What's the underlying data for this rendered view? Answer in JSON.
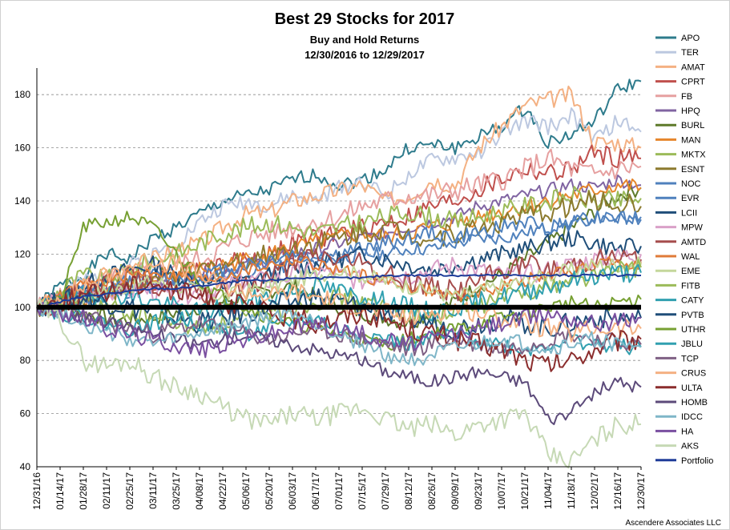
{
  "chart_data": {
    "type": "line",
    "title": "Best 29 Stocks for 2017",
    "subtitle_1": "Buy and Hold Returns",
    "subtitle_2": "12/30/2016 to 12/29/2017",
    "xlabel": "",
    "ylabel": "",
    "ylim": [
      40,
      190
    ],
    "yticks": [
      40,
      60,
      80,
      100,
      120,
      140,
      160,
      180
    ],
    "grid": true,
    "legend_position": "right",
    "baseline_value": 100,
    "credit": "Ascendere Associates LLC",
    "x": [
      "12/31/16",
      "01/14/17",
      "01/28/17",
      "02/11/17",
      "02/25/17",
      "03/11/17",
      "03/25/17",
      "04/08/17",
      "04/22/17",
      "05/06/17",
      "05/20/17",
      "06/03/17",
      "06/17/17",
      "07/01/17",
      "07/15/17",
      "07/29/17",
      "08/12/17",
      "08/26/17",
      "09/09/17",
      "09/23/17",
      "10/07/17",
      "10/21/17",
      "11/04/17",
      "11/18/17",
      "12/02/17",
      "12/16/17",
      "12/30/17"
    ],
    "series": [
      {
        "name": "APO",
        "color": "#2e7b8c",
        "values": [
          100,
          108,
          112,
          120,
          118,
          126,
          130,
          135,
          140,
          142,
          144,
          148,
          150,
          146,
          148,
          152,
          160,
          161,
          160,
          164,
          168,
          175,
          162,
          165,
          170,
          182,
          185
        ]
      },
      {
        "name": "TER",
        "color": "#bcc8e0",
        "values": [
          100,
          104,
          110,
          112,
          116,
          120,
          124,
          132,
          138,
          140,
          138,
          142,
          140,
          145,
          148,
          142,
          150,
          155,
          156,
          158,
          165,
          170,
          168,
          172,
          163,
          170,
          166
        ]
      },
      {
        "name": "AMAT",
        "color": "#f4b183",
        "values": [
          100,
          103,
          108,
          112,
          114,
          118,
          122,
          124,
          130,
          135,
          136,
          140,
          142,
          144,
          146,
          140,
          142,
          148,
          146,
          160,
          168,
          176,
          178,
          180,
          162,
          162,
          160
        ]
      },
      {
        "name": "CPRT",
        "color": "#c0504d",
        "values": [
          100,
          102,
          104,
          106,
          108,
          110,
          112,
          114,
          116,
          118,
          120,
          124,
          126,
          128,
          130,
          132,
          134,
          138,
          140,
          144,
          148,
          152,
          150,
          152,
          158,
          156,
          156
        ]
      },
      {
        "name": "FB",
        "color": "#e6a0a0",
        "values": [
          100,
          103,
          106,
          110,
          112,
          114,
          116,
          118,
          122,
          126,
          128,
          130,
          132,
          134,
          138,
          140,
          142,
          142,
          144,
          146,
          148,
          152,
          156,
          152,
          150,
          152,
          153
        ]
      },
      {
        "name": "HPQ",
        "color": "#8064a2",
        "values": [
          100,
          102,
          104,
          106,
          108,
          110,
          108,
          112,
          114,
          116,
          118,
          120,
          122,
          124,
          126,
          128,
          130,
          132,
          134,
          138,
          140,
          142,
          144,
          146,
          145,
          148,
          146
        ]
      },
      {
        "name": "BURL",
        "color": "#5e7a2a",
        "values": [
          100,
          100,
          98,
          96,
          95,
          96,
          98,
          100,
          102,
          104,
          106,
          108,
          104,
          100,
          98,
          96,
          94,
          98,
          102,
          108,
          112,
          118,
          124,
          130,
          136,
          142,
          145
        ]
      },
      {
        "name": "MAN",
        "color": "#e6862c",
        "values": [
          100,
          102,
          104,
          106,
          108,
          110,
          112,
          114,
          116,
          118,
          120,
          122,
          124,
          126,
          128,
          126,
          128,
          130,
          132,
          134,
          136,
          138,
          140,
          142,
          144,
          146,
          145
        ]
      },
      {
        "name": "MKTX",
        "color": "#9bbb59",
        "values": [
          100,
          106,
          112,
          110,
          114,
          118,
          120,
          124,
          128,
          130,
          132,
          130,
          128,
          130,
          132,
          134,
          136,
          134,
          132,
          134,
          136,
          138,
          140,
          142,
          140,
          140,
          141
        ]
      },
      {
        "name": "ESNT",
        "color": "#8c7a2e",
        "values": [
          100,
          102,
          104,
          106,
          108,
          110,
          112,
          114,
          116,
          118,
          120,
          122,
          124,
          126,
          128,
          130,
          128,
          126,
          128,
          130,
          132,
          134,
          136,
          138,
          140,
          139,
          138
        ]
      },
      {
        "name": "NOC",
        "color": "#4f81bd",
        "values": [
          100,
          101,
          102,
          104,
          106,
          106,
          108,
          110,
          112,
          114,
          114,
          116,
          118,
          118,
          120,
          120,
          122,
          122,
          124,
          126,
          126,
          128,
          130,
          132,
          134,
          133,
          134
        ]
      },
      {
        "name": "EVR",
        "color": "#4f81bd",
        "values": [
          100,
          104,
          106,
          108,
          110,
          112,
          110,
          112,
          114,
          116,
          118,
          120,
          118,
          120,
          122,
          124,
          126,
          128,
          126,
          128,
          130,
          132,
          130,
          132,
          134,
          134,
          133
        ]
      },
      {
        "name": "LCII",
        "color": "#1f4e79",
        "values": [
          100,
          104,
          108,
          112,
          114,
          116,
          112,
          110,
          108,
          110,
          112,
          114,
          116,
          118,
          120,
          118,
          116,
          114,
          116,
          118,
          120,
          122,
          124,
          126,
          124,
          122,
          123
        ]
      },
      {
        "name": "MPW",
        "color": "#d9a0c8",
        "values": [
          100,
          102,
          104,
          106,
          106,
          106,
          104,
          106,
          108,
          110,
          110,
          112,
          114,
          112,
          110,
          112,
          112,
          114,
          116,
          114,
          112,
          112,
          114,
          116,
          118,
          119,
          120
        ]
      },
      {
        "name": "AMTD",
        "color": "#a64d4d",
        "values": [
          100,
          102,
          106,
          110,
          112,
          108,
          106,
          104,
          106,
          108,
          112,
          116,
          120,
          118,
          116,
          112,
          110,
          108,
          106,
          110,
          114,
          116,
          114,
          116,
          118,
          119,
          118
        ]
      },
      {
        "name": "WAL",
        "color": "#e07b39",
        "values": [
          100,
          104,
          108,
          110,
          112,
          114,
          112,
          110,
          112,
          114,
          116,
          118,
          116,
          114,
          112,
          110,
          108,
          106,
          104,
          106,
          108,
          110,
          112,
          114,
          116,
          117,
          117
        ]
      },
      {
        "name": "EME",
        "color": "#c4d79b",
        "values": [
          100,
          102,
          104,
          106,
          108,
          110,
          108,
          106,
          104,
          106,
          108,
          110,
          112,
          114,
          112,
          110,
          108,
          106,
          104,
          106,
          108,
          110,
          112,
          114,
          116,
          116,
          116
        ]
      },
      {
        "name": "FITB",
        "color": "#9bbb59",
        "values": [
          100,
          102,
          104,
          100,
          98,
          96,
          94,
          92,
          94,
          96,
          98,
          100,
          102,
          104,
          102,
          100,
          98,
          96,
          98,
          100,
          104,
          106,
          108,
          110,
          112,
          114,
          115
        ]
      },
      {
        "name": "CATY",
        "color": "#31a0b0",
        "values": [
          100,
          102,
          104,
          106,
          104,
          102,
          100,
          98,
          100,
          102,
          104,
          106,
          108,
          106,
          104,
          102,
          100,
          98,
          100,
          102,
          104,
          106,
          108,
          110,
          112,
          113,
          113
        ]
      },
      {
        "name": "PVTB",
        "color": "#1f4e79",
        "values": [
          100,
          102,
          104,
          102,
          100,
          98,
          96,
          94,
          96,
          98,
          100,
          102,
          104,
          102,
          100,
          98,
          96,
          94,
          92,
          94,
          96,
          94,
          92,
          94,
          96,
          96,
          96
        ]
      },
      {
        "name": "UTHR",
        "color": "#77a033",
        "values": [
          100,
          102,
          130,
          132,
          134,
          130,
          120,
          110,
          104,
          100,
          96,
          94,
          92,
          90,
          88,
          86,
          88,
          90,
          92,
          94,
          96,
          98,
          100,
          102,
          100,
          102,
          103
        ]
      },
      {
        "name": "JBLU",
        "color": "#31a0b0",
        "values": [
          100,
          98,
          96,
          94,
          92,
          94,
          96,
          94,
          92,
          90,
          92,
          94,
          96,
          92,
          90,
          88,
          86,
          88,
          90,
          88,
          86,
          84,
          86,
          88,
          86,
          85,
          85
        ]
      },
      {
        "name": "TCP",
        "color": "#7f6084",
        "values": [
          100,
          98,
          96,
          94,
          92,
          90,
          92,
          94,
          92,
          90,
          88,
          90,
          92,
          90,
          88,
          86,
          84,
          86,
          88,
          86,
          84,
          86,
          88,
          90,
          88,
          87,
          86
        ]
      },
      {
        "name": "CRUS",
        "color": "#f4b183",
        "values": [
          100,
          104,
          108,
          112,
          116,
          118,
          116,
          112,
          108,
          106,
          104,
          106,
          104,
          102,
          100,
          98,
          96,
          98,
          100,
          98,
          96,
          94,
          92,
          90,
          92,
          92,
          92
        ]
      },
      {
        "name": "ULTA",
        "color": "#8b2d2d",
        "values": [
          100,
          102,
          104,
          106,
          108,
          110,
          106,
          104,
          102,
          100,
          98,
          96,
          94,
          96,
          98,
          96,
          92,
          90,
          88,
          86,
          84,
          80,
          78,
          80,
          84,
          87,
          88
        ]
      },
      {
        "name": "HOMB",
        "color": "#5c4a7a",
        "values": [
          100,
          98,
          96,
          94,
          92,
          90,
          88,
          86,
          88,
          90,
          88,
          86,
          84,
          82,
          80,
          76,
          74,
          72,
          74,
          76,
          74,
          72,
          58,
          60,
          68,
          72,
          70
        ]
      },
      {
        "name": "IDCC",
        "color": "#7fb6c8",
        "values": [
          100,
          98,
          94,
          90,
          88,
          86,
          88,
          90,
          92,
          94,
          96,
          98,
          94,
          90,
          86,
          82,
          80,
          82,
          84,
          86,
          88,
          86,
          84,
          86,
          88,
          86,
          85
        ]
      },
      {
        "name": "HA",
        "color": "#7a4fa0",
        "values": [
          100,
          98,
          96,
          92,
          90,
          88,
          86,
          84,
          86,
          88,
          90,
          92,
          94,
          92,
          90,
          88,
          86,
          88,
          90,
          92,
          94,
          96,
          98,
          96,
          94,
          95,
          96
        ]
      },
      {
        "name": "AKS",
        "color": "#c6d9b5",
        "values": [
          100,
          96,
          80,
          78,
          80,
          74,
          70,
          68,
          62,
          58,
          56,
          60,
          58,
          60,
          62,
          58,
          54,
          56,
          52,
          56,
          58,
          60,
          44,
          42,
          50,
          56,
          56
        ]
      },
      {
        "name": "Portfolio",
        "color": "#1f3c99",
        "values": [
          100,
          102,
          104,
          105,
          106,
          107,
          107,
          108,
          109,
          110,
          110,
          111,
          111,
          111,
          111,
          112,
          112,
          112,
          112,
          112,
          112,
          112,
          112,
          112,
          112,
          112,
          112
        ]
      }
    ]
  }
}
